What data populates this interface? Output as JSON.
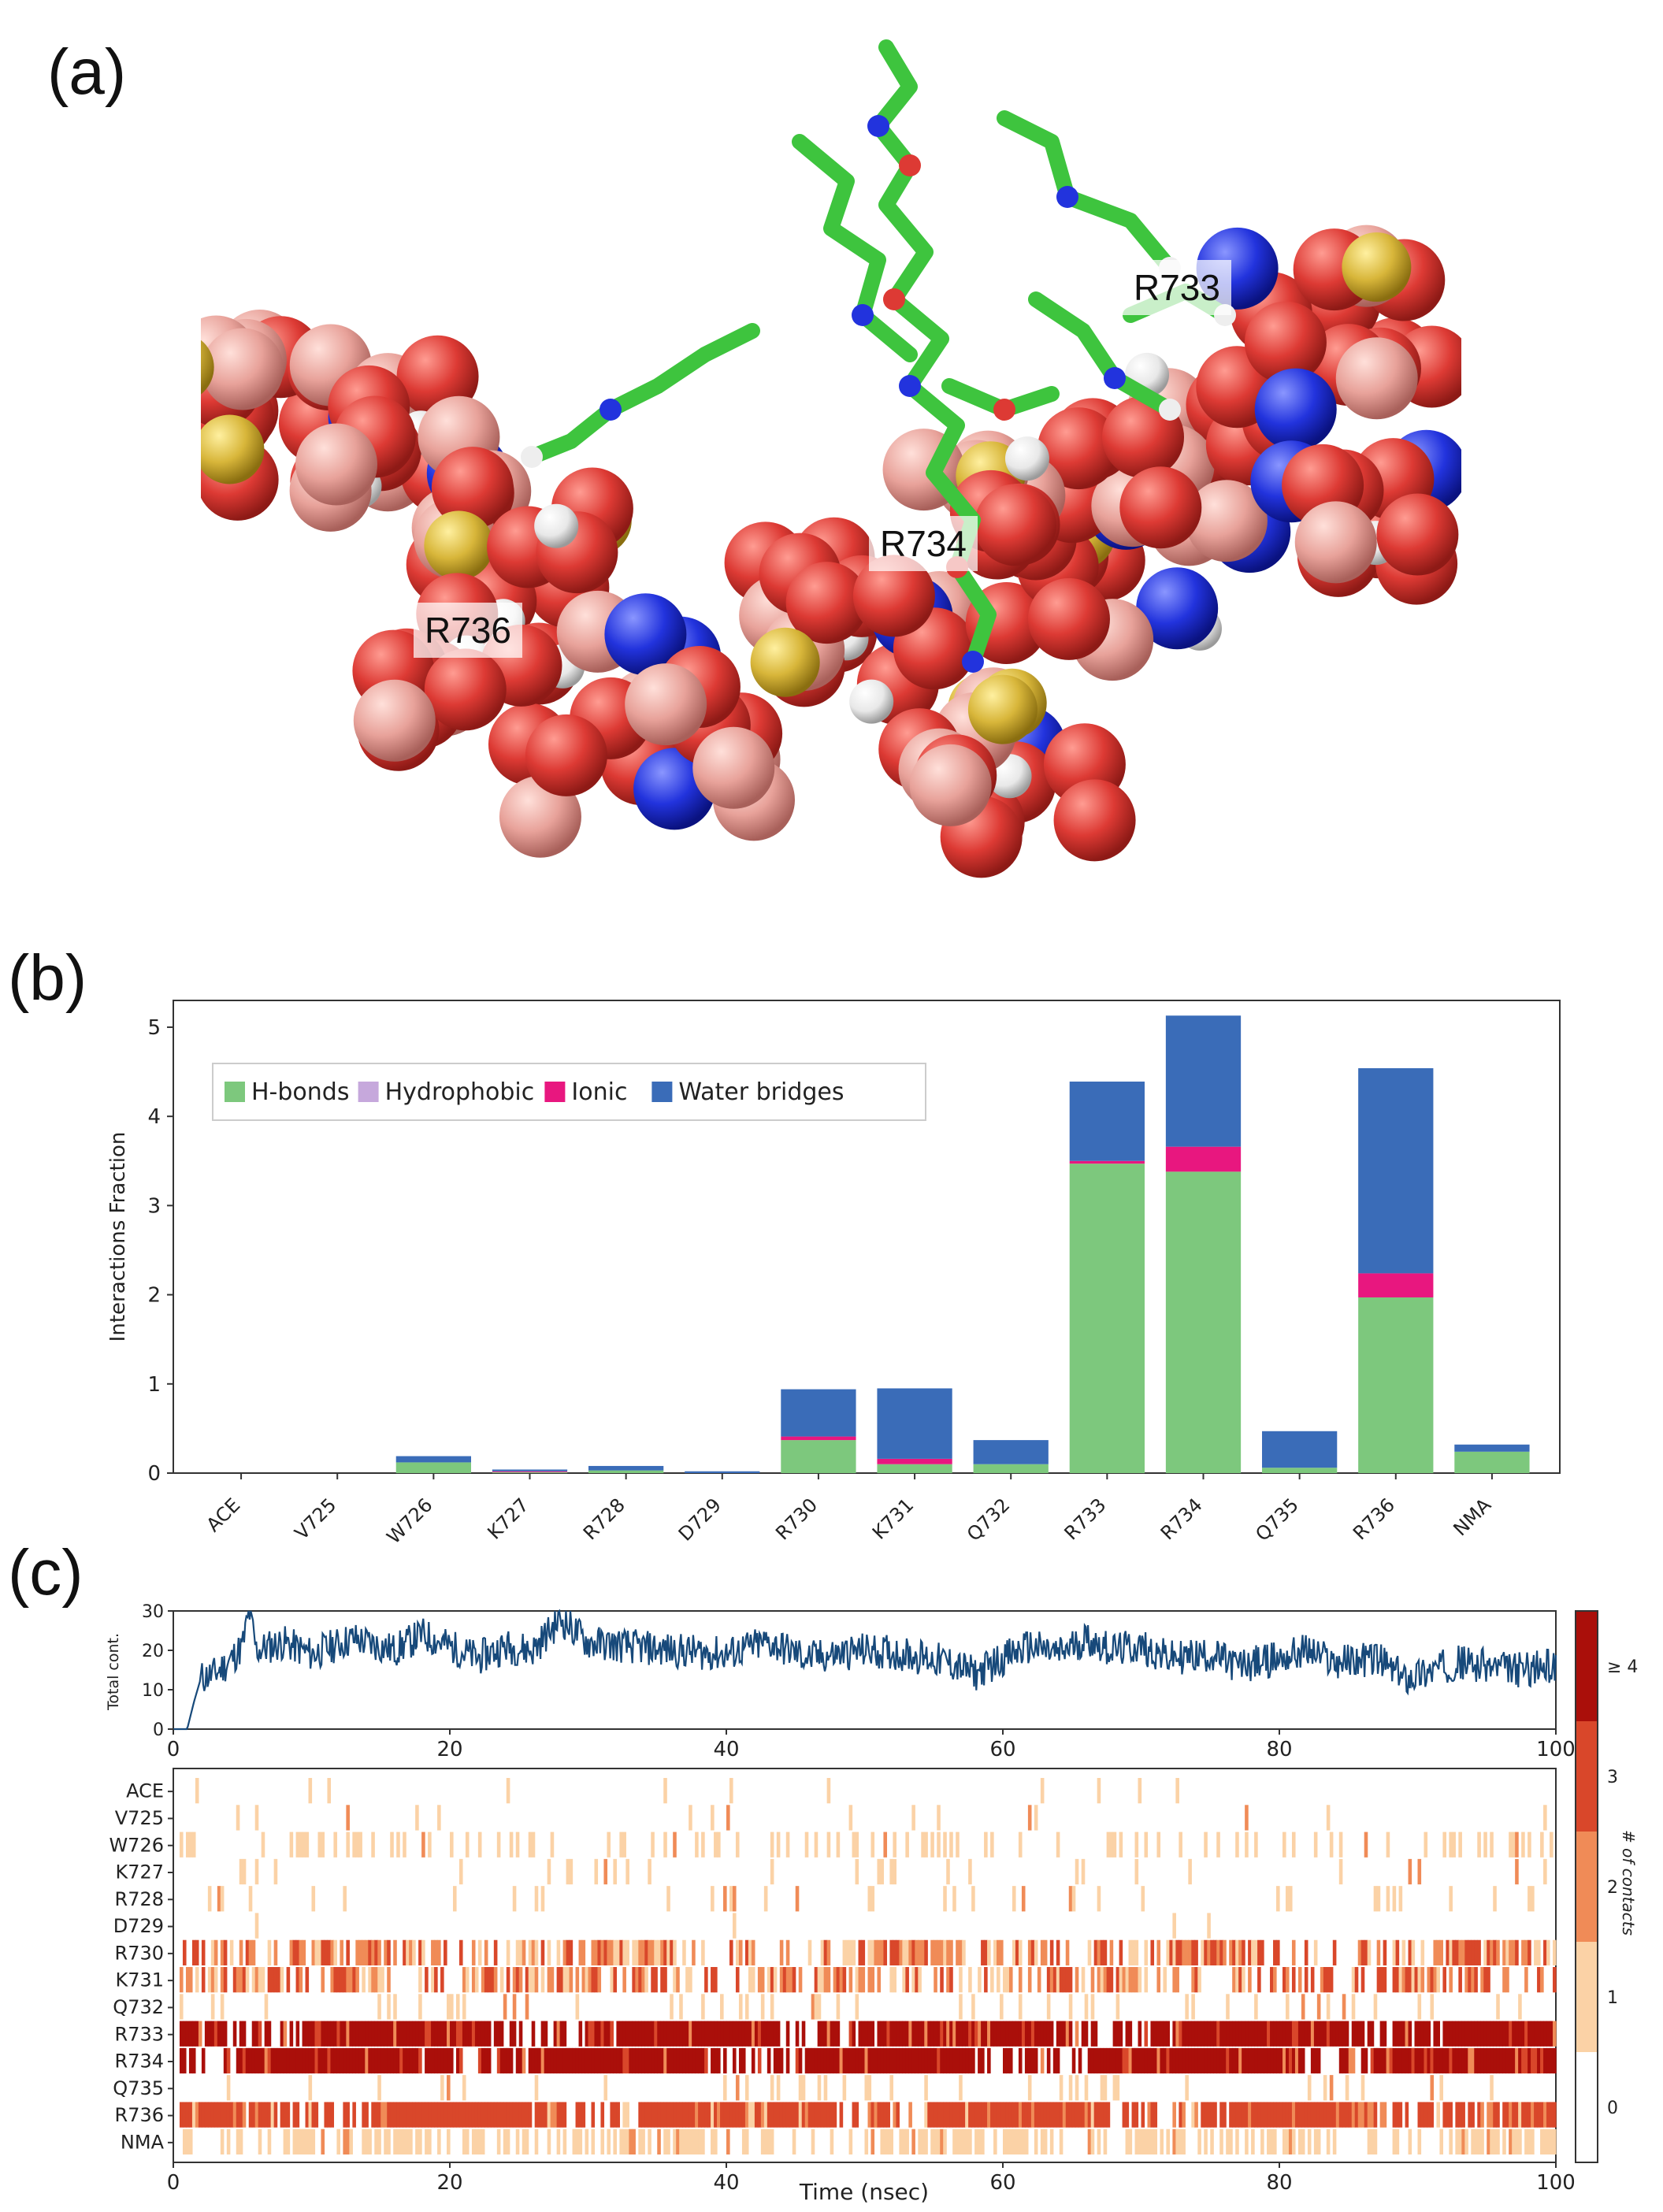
{
  "panels": {
    "a": "(a)",
    "b": "(b)",
    "c": "(c)"
  },
  "structure_labels": {
    "r733": "R733",
    "r734": "R734",
    "r736": "R736"
  },
  "colors": {
    "carbon_green": "#3ec43e",
    "nitrogen_blue": "#2233dd",
    "oxygen_red": "#dd3a34",
    "sulfur_yellow": "#d8b63a",
    "salmon": "#e8a29a",
    "hydrogen_white": "#eeeeee",
    "h_bonds": "#7dc87d",
    "hydrophobic": "#c6a8dc",
    "ionic": "#e8177f",
    "water_bridges": "#3a6cb8",
    "timeline": "#17497a"
  },
  "chart_data": [
    {
      "type": "bar",
      "stacked": true,
      "ylabel": "Interactions Fraction",
      "ylim": [
        0,
        5.3
      ],
      "yticks": [
        0,
        1,
        2,
        3,
        4,
        5
      ],
      "legend_position": "upper-left",
      "categories": [
        "ACE",
        "V725",
        "W726",
        "K727",
        "R728",
        "D729",
        "R730",
        "K731",
        "Q732",
        "R733",
        "R734",
        "Q735",
        "R736",
        "NMA"
      ],
      "series": [
        {
          "name": "H-bonds",
          "color": "#7dc87d",
          "values": [
            0,
            0,
            0.12,
            0.01,
            0.03,
            0,
            0.37,
            0.1,
            0.1,
            3.47,
            3.38,
            0.06,
            1.97,
            0.24
          ]
        },
        {
          "name": "Hydrophobic",
          "color": "#c6a8dc",
          "values": [
            0,
            0,
            0,
            0,
            0,
            0,
            0,
            0,
            0,
            0,
            0,
            0,
            0,
            0
          ]
        },
        {
          "name": "Ionic",
          "color": "#e8177f",
          "values": [
            0,
            0,
            0,
            0.01,
            0,
            0,
            0.04,
            0.06,
            0,
            0.03,
            0.28,
            0,
            0.27,
            0
          ]
        },
        {
          "name": "Water bridges",
          "color": "#3a6cb8",
          "values": [
            0,
            0,
            0.07,
            0.02,
            0.05,
            0.02,
            0.53,
            0.79,
            0.27,
            0.89,
            1.47,
            0.41,
            2.3,
            0.08
          ]
        }
      ]
    },
    {
      "type": "line",
      "ylabel": "Total cont.",
      "xlim": [
        0,
        100
      ],
      "ylim": [
        0,
        30
      ],
      "xticks": [
        0,
        20,
        40,
        60,
        80,
        100
      ],
      "yticks": [
        0,
        10,
        20,
        30
      ],
      "series_points": [
        [
          0,
          0
        ],
        [
          1,
          0
        ],
        [
          1.5,
          7
        ],
        [
          2,
          13
        ],
        [
          3,
          14
        ],
        [
          4,
          17
        ],
        [
          5,
          21
        ],
        [
          5.5,
          30
        ],
        [
          6,
          20
        ],
        [
          8,
          22
        ],
        [
          10,
          19
        ],
        [
          13,
          23
        ],
        [
          16,
          20
        ],
        [
          18,
          24
        ],
        [
          20,
          21
        ],
        [
          22,
          18
        ],
        [
          24,
          21
        ],
        [
          26,
          20
        ],
        [
          28,
          28
        ],
        [
          30,
          22
        ],
        [
          33,
          21
        ],
        [
          36,
          20
        ],
        [
          40,
          19
        ],
        [
          43,
          22
        ],
        [
          46,
          18
        ],
        [
          50,
          20
        ],
        [
          53,
          19
        ],
        [
          56,
          17
        ],
        [
          58,
          14
        ],
        [
          60,
          18
        ],
        [
          62,
          21
        ],
        [
          64,
          19
        ],
        [
          66,
          23
        ],
        [
          68,
          20
        ],
        [
          70,
          21
        ],
        [
          72,
          18
        ],
        [
          75,
          19
        ],
        [
          77,
          16
        ],
        [
          80,
          18
        ],
        [
          82,
          20
        ],
        [
          84,
          17
        ],
        [
          87,
          18
        ],
        [
          89,
          13
        ],
        [
          91,
          15
        ],
        [
          93,
          17
        ],
        [
          95,
          16
        ],
        [
          97,
          15
        ],
        [
          100,
          16
        ]
      ]
    },
    {
      "type": "heatmap",
      "xlabel": "Time (nsec)",
      "xlim": [
        0,
        100
      ],
      "xticks": [
        0,
        20,
        40,
        60,
        80,
        100
      ],
      "rows": [
        "ACE",
        "V725",
        "W726",
        "K727",
        "R728",
        "D729",
        "R730",
        "K731",
        "Q732",
        "R733",
        "R734",
        "Q735",
        "R736",
        "NMA"
      ],
      "row_density": [
        0.02,
        0.03,
        0.22,
        0.05,
        0.09,
        0.01,
        0.55,
        0.55,
        0.1,
        0.98,
        0.98,
        0.08,
        0.93,
        0.45
      ],
      "row_intensity": [
        1,
        1,
        1,
        1,
        1,
        1,
        2,
        2,
        1,
        4,
        4,
        1,
        3,
        1
      ],
      "colorbar_label": "# of contacts",
      "colorbar_ticks": [
        "0",
        "1",
        "2",
        "3",
        "≥ 4"
      ],
      "colorbar_colors": [
        "#ffffff",
        "#fbd2a6",
        "#f08b57",
        "#d9472a",
        "#aa0f0a"
      ]
    }
  ]
}
